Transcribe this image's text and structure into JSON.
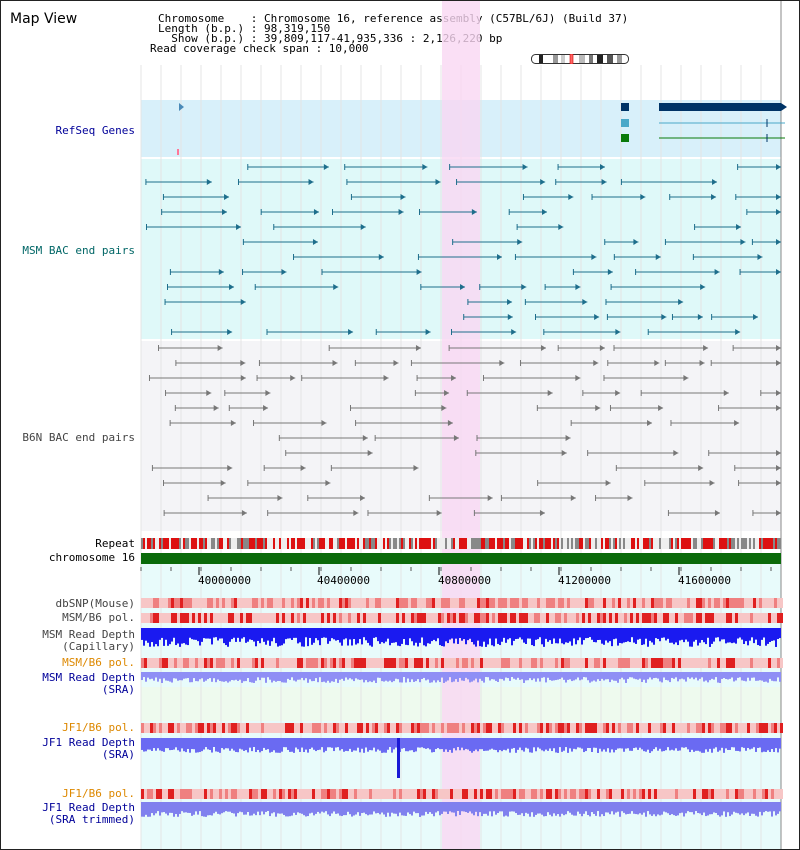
{
  "header": {
    "title": "Map View",
    "lines": [
      "Chromosome    : Chromosome 16, reference assembly (C57BL/6J) (Build 37)",
      "Length (b.p.) : 98,319,150",
      "  Show (b.p.) : 39,809,117-41,935,336 : 2,126,220 bp",
      "Read coverage check span : 10,000"
    ]
  },
  "tracks": {
    "refseq": "RefSeq Genes",
    "msm_bac": "MSM BAC end pairs",
    "b6n_bac": "B6N BAC end pairs",
    "repeat": "Repeat",
    "chromosome": "chromosome 16",
    "dbsnp": "dbSNP(Mouse)",
    "msm_b6_pol_1": "MSM/B6 pol.",
    "msm_depth_cap_1": "MSM Read Depth",
    "msm_depth_cap_2": "(Capillary)",
    "msm_b6_pol_2": "MSM/B6 pol.",
    "msm_depth_sra_1": "MSM Read Depth",
    "msm_depth_sra_2": "(SRA)",
    "jf1_b6_pol_1": "JF1/B6 pol.",
    "jf1_depth_sra_1": "JF1 Read Depth",
    "jf1_depth_sra_2": "(SRA)",
    "jf1_b6_pol_2": "JF1/B6 pol.",
    "jf1_depth_trim_1": "JF1 Read Depth",
    "jf1_depth_trim_2": "(SRA trimmed)"
  },
  "axis": {
    "ticks": [
      "40000000",
      "40400000",
      "40800000",
      "41200000",
      "41600000"
    ]
  },
  "colors": {
    "navy_label": "#000099",
    "orange_label": "#dd8800",
    "teal_label": "#006666",
    "gray_label": "#444444",
    "highlight": "#f9d7f3",
    "refseq_bg": "#d8f0fa",
    "msm_bg": "#dff9f9",
    "b6n_bg": "#f4f4f7"
  }
}
